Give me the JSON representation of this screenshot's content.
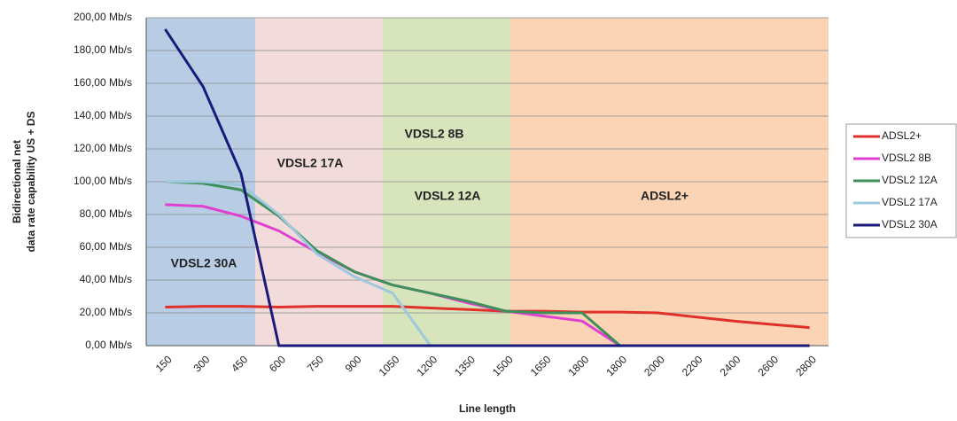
{
  "chart_data": {
    "type": "line",
    "y_label": [
      "Bidirectional net",
      "data rate capability US + DS"
    ],
    "x_label": "Line length",
    "categories": [
      "150",
      "300",
      "450",
      "600",
      "750",
      "900",
      "1050",
      "1200",
      "1350",
      "1500",
      "1650",
      "1800",
      "1800",
      "2000",
      "2200",
      "2400",
      "2600",
      "2800"
    ],
    "ylim": [
      0,
      200
    ],
    "yticks": [
      {
        "value": 0,
        "label": "0,00 Mb/s"
      },
      {
        "value": 20,
        "label": "20,00 Mb/s"
      },
      {
        "value": 40,
        "label": "40,00 Mb/s"
      },
      {
        "value": 60,
        "label": "60,00 Mb/s"
      },
      {
        "value": 80,
        "label": "80,00 Mb/s"
      },
      {
        "value": 100,
        "label": "100,00 Mb/s"
      },
      {
        "value": 120,
        "label": "120,00 Mb/s"
      },
      {
        "value": 140,
        "label": "140,00 Mb/s"
      },
      {
        "value": 160,
        "label": "160,00 Mb/s"
      },
      {
        "value": 180,
        "label": "180,00 Mb/s"
      },
      {
        "value": 200,
        "label": "200,00 Mb/s"
      }
    ],
    "grid": true,
    "legend": "right",
    "regions": [
      {
        "label": "VDSL2 30A",
        "color": "#b8cce4"
      },
      {
        "label": "VDSL2 17A",
        "color": "#f2dcdb"
      },
      {
        "label": "VDSL2 8B",
        "color": "#d7e4bc"
      },
      {
        "label": "VDSL2 12A",
        "color": "#d7e4bc"
      },
      {
        "label": "ADSL2+",
        "color": "#fbd4b6"
      }
    ],
    "series": [
      {
        "name": "ADSL2+",
        "color": "#e0302a",
        "values": [
          23.5,
          24,
          24,
          23.5,
          24,
          24,
          24,
          23,
          22,
          21,
          21,
          20.5,
          20.5,
          20,
          17.5,
          15,
          13,
          11
        ]
      },
      {
        "name": "VDSL2 8B",
        "color": "#e040d0",
        "values": [
          86,
          85,
          79,
          70,
          57,
          45,
          37,
          32,
          26,
          21,
          18,
          15,
          0,
          0,
          0,
          0,
          0,
          0
        ]
      },
      {
        "name": "VDSL2 12A",
        "color": "#3f8f5a",
        "values": [
          100,
          99,
          95,
          79,
          58,
          45,
          37,
          32,
          27,
          21,
          20,
          20,
          0,
          0,
          0,
          0,
          0,
          0
        ]
      },
      {
        "name": "VDSL2 17A",
        "color": "#9ec8dc",
        "values": [
          100,
          100,
          98,
          80,
          56,
          42,
          32,
          0,
          0,
          0,
          0,
          0,
          0,
          0,
          0,
          0,
          0,
          0
        ]
      },
      {
        "name": "VDSL2 30A",
        "color": "#1a1a7a",
        "values": [
          193,
          158,
          105,
          0,
          0,
          0,
          0,
          0,
          0,
          0,
          0,
          0,
          0,
          0,
          0,
          0,
          0,
          0
        ]
      }
    ]
  }
}
